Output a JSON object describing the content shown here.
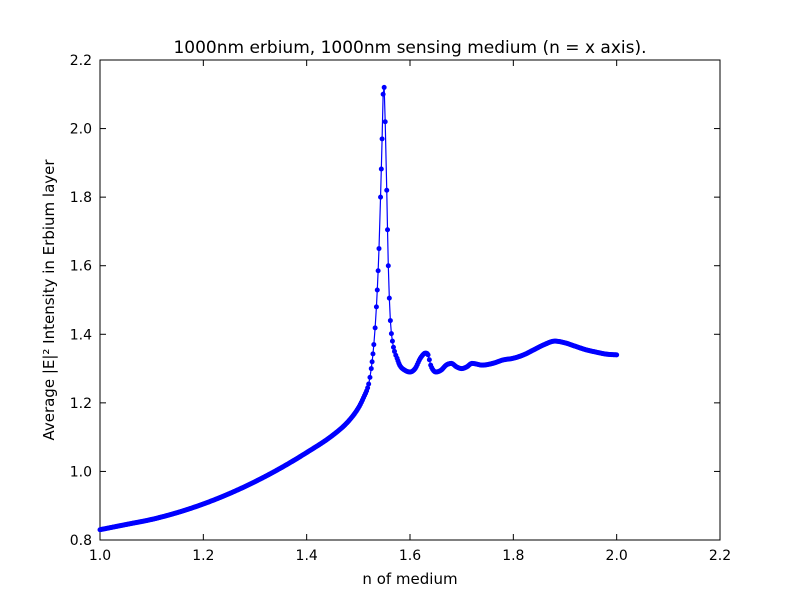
{
  "chart_data": {
    "type": "line",
    "title": "1000nm erbium, 1000nm sensing medium (n = x axis).",
    "xlabel": "n of medium",
    "ylabel": "Average |E|² Intensity in Erbium layer",
    "xlim": [
      1.0,
      2.2
    ],
    "ylim": [
      0.8,
      2.2
    ],
    "xticks": [
      1.0,
      1.2,
      1.4,
      1.6,
      1.8,
      2.0,
      2.2
    ],
    "yticks": [
      0.8,
      1.0,
      1.2,
      1.4,
      1.6,
      1.8,
      2.0,
      2.2
    ],
    "xtick_labels": [
      "1.0",
      "1.2",
      "1.4",
      "1.6",
      "1.8",
      "2.0",
      "2.2"
    ],
    "ytick_labels": [
      "0.8",
      "1.0",
      "1.2",
      "1.4",
      "1.6",
      "1.8",
      "2.0",
      "2.2"
    ],
    "grid": false,
    "marker": "dot",
    "color": "#0000ff",
    "series": [
      {
        "x": [
          1.0,
          1.05,
          1.1,
          1.15,
          1.2,
          1.25,
          1.3,
          1.35,
          1.4,
          1.45,
          1.48,
          1.5,
          1.51,
          1.52,
          1.525,
          1.53,
          1.535,
          1.54,
          1.543,
          1.546,
          1.548,
          1.55,
          1.552,
          1.555,
          1.558,
          1.562,
          1.566,
          1.57,
          1.575,
          1.58,
          1.59,
          1.6,
          1.61,
          1.62,
          1.63,
          1.635,
          1.64,
          1.65,
          1.66,
          1.67,
          1.68,
          1.69,
          1.7,
          1.71,
          1.72,
          1.74,
          1.76,
          1.78,
          1.8,
          1.82,
          1.84,
          1.86,
          1.88,
          1.9,
          1.92,
          1.94,
          1.96,
          1.98,
          2.0
        ],
        "y": [
          0.83,
          0.845,
          0.86,
          0.88,
          0.905,
          0.935,
          0.97,
          1.01,
          1.055,
          1.105,
          1.145,
          1.185,
          1.215,
          1.255,
          1.3,
          1.37,
          1.48,
          1.65,
          1.8,
          1.97,
          2.1,
          2.12,
          2.02,
          1.82,
          1.6,
          1.44,
          1.38,
          1.35,
          1.33,
          1.31,
          1.295,
          1.29,
          1.3,
          1.33,
          1.345,
          1.34,
          1.31,
          1.29,
          1.295,
          1.31,
          1.315,
          1.305,
          1.3,
          1.305,
          1.315,
          1.31,
          1.315,
          1.325,
          1.33,
          1.34,
          1.355,
          1.37,
          1.38,
          1.375,
          1.365,
          1.355,
          1.348,
          1.342,
          1.34
        ]
      }
    ]
  }
}
